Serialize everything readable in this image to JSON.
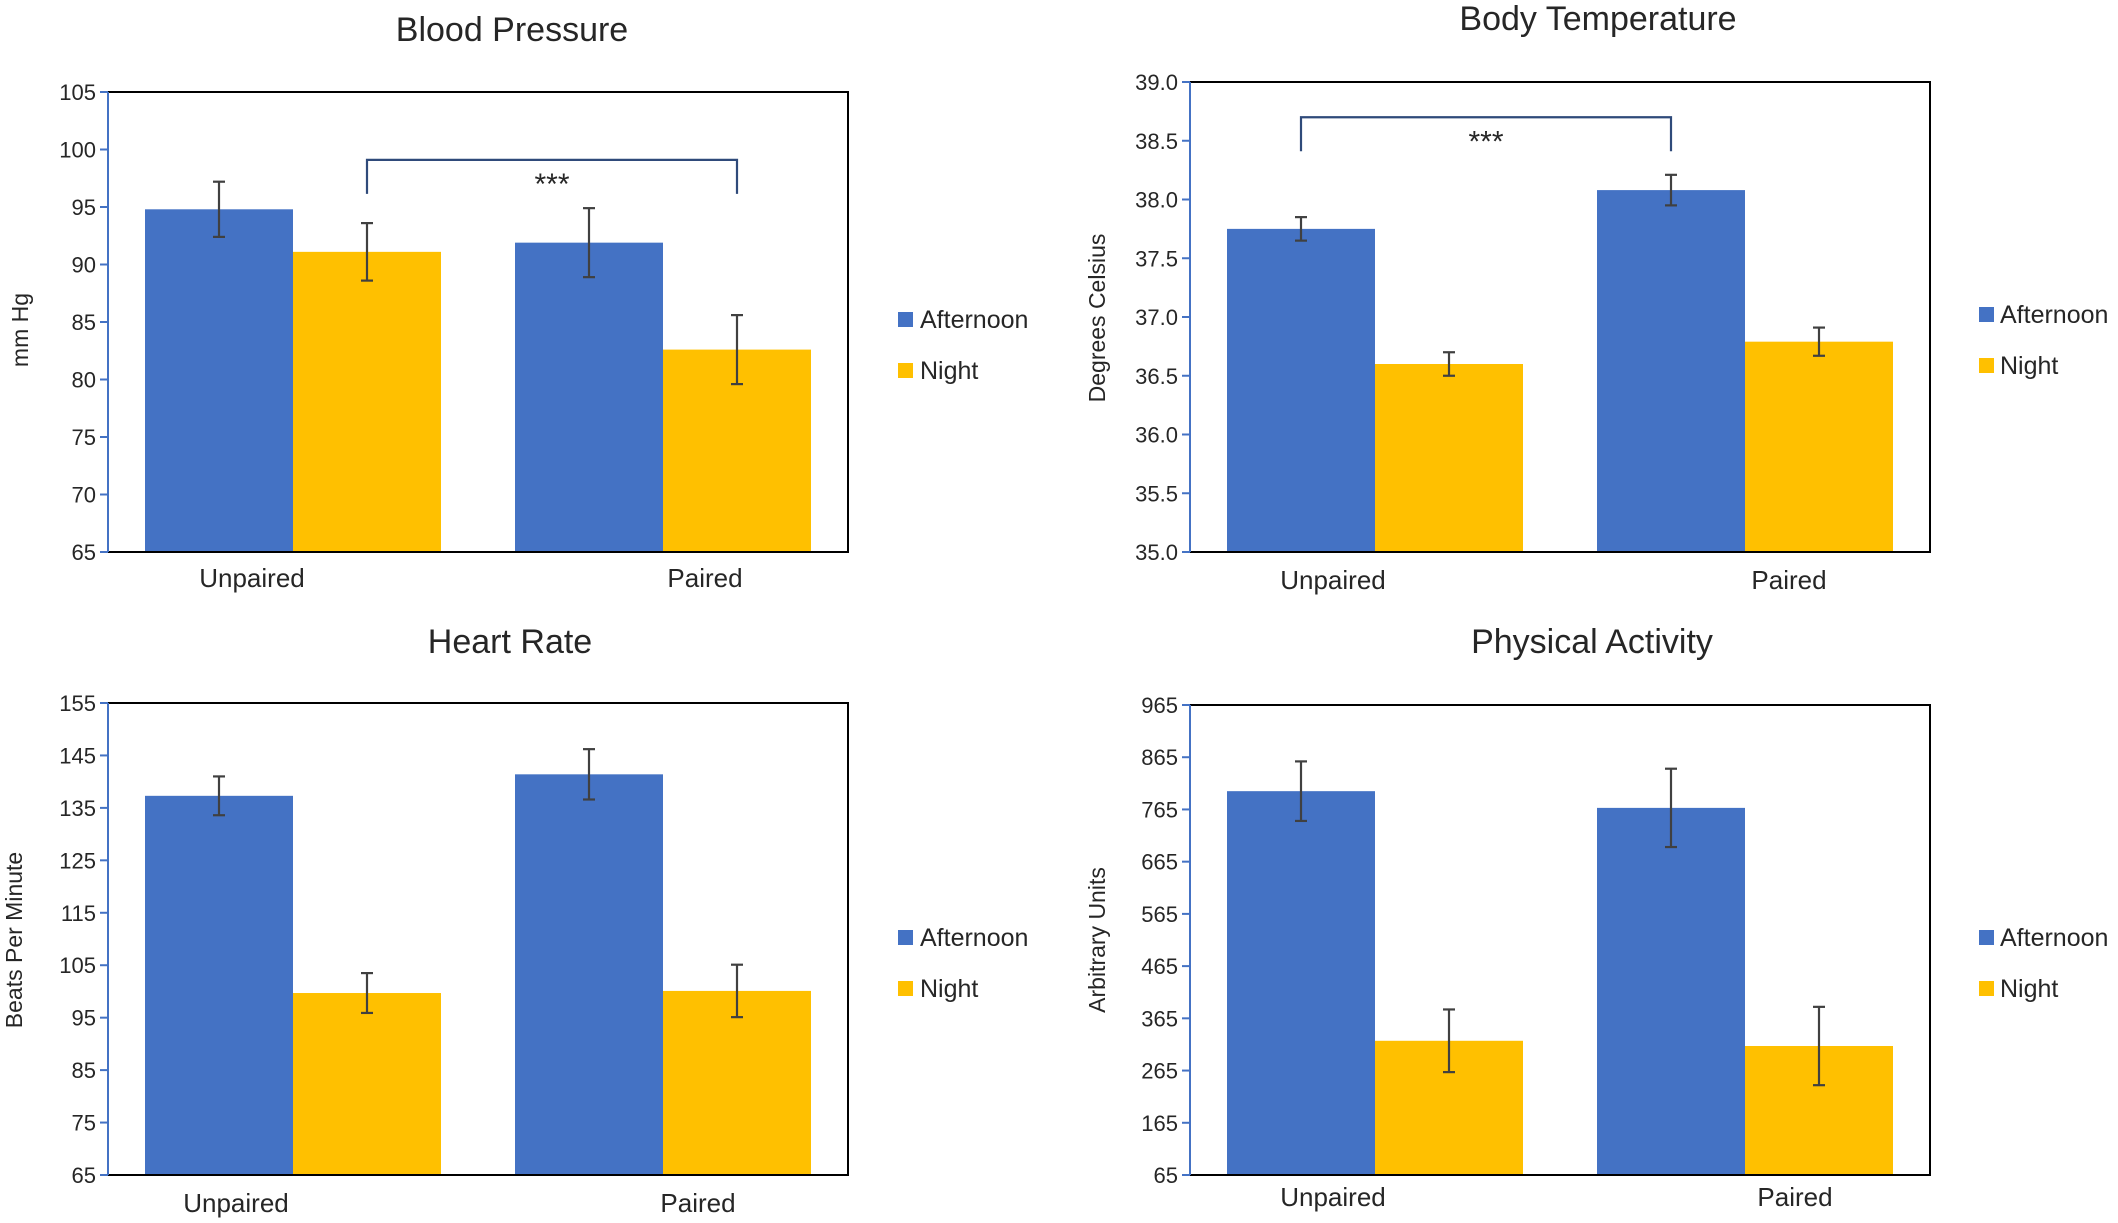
{
  "colors": {
    "afternoon": "#4472C4",
    "night": "#FFC000",
    "axis": "#000000",
    "tick_line": "#4472C4",
    "errbar": "#404040"
  },
  "chart_data": [
    {
      "type": "bar",
      "title": "Blood Pressure",
      "ylabel": "mm Hg",
      "ylim": [
        65,
        105
      ],
      "yticks": [
        65,
        70,
        75,
        80,
        85,
        90,
        95,
        100,
        105
      ],
      "ytick_labels": [
        "65",
        "70",
        "75",
        "80",
        "85",
        "90",
        "95",
        "100",
        "105"
      ],
      "categories": [
        "Unpaired",
        "Paired"
      ],
      "series": [
        {
          "name": "Afternoon",
          "values": [
            94.8,
            91.9
          ],
          "errors": [
            2.4,
            3.0
          ]
        },
        {
          "name": "Night",
          "values": [
            91.1,
            82.6
          ],
          "errors": [
            2.5,
            3.0
          ]
        }
      ],
      "annotations": [
        {
          "text": "***",
          "from": [
            "Unpaired",
            "Night"
          ],
          "to": [
            "Paired",
            "Night"
          ],
          "y": 99.1
        }
      ],
      "legend": "right",
      "grid": false
    },
    {
      "type": "bar",
      "title": "Body Temperature",
      "ylabel": "Degrees Celsius",
      "ylim": [
        35.0,
        39.0
      ],
      "yticks": [
        35.0,
        35.5,
        36.0,
        36.5,
        37.0,
        37.5,
        38.0,
        38.5,
        39.0
      ],
      "ytick_labels": [
        "35.0",
        "35.5",
        "36.0",
        "36.5",
        "37.0",
        "37.5",
        "38.0",
        "38.5",
        "39.0"
      ],
      "categories": [
        "Unpaired",
        "Paired"
      ],
      "series": [
        {
          "name": "Afternoon",
          "values": [
            37.75,
            38.08
          ],
          "errors": [
            0.1,
            0.13
          ]
        },
        {
          "name": "Night",
          "values": [
            36.6,
            36.79
          ],
          "errors": [
            0.1,
            0.12
          ]
        }
      ],
      "annotations": [
        {
          "text": "***",
          "from": [
            "Unpaired",
            "Afternoon"
          ],
          "to": [
            "Paired",
            "Afternoon"
          ],
          "y": 38.7
        }
      ],
      "legend": "right",
      "grid": false
    },
    {
      "type": "bar",
      "title": "Heart Rate",
      "ylabel": "Beats Per Minute",
      "ylim": [
        65,
        155
      ],
      "yticks": [
        65,
        75,
        85,
        95,
        105,
        115,
        125,
        135,
        145,
        155
      ],
      "ytick_labels": [
        "65",
        "75",
        "85",
        "95",
        "105",
        "115",
        "125",
        "135",
        "145",
        "155"
      ],
      "categories": [
        "Unpaired",
        "Paired"
      ],
      "series": [
        {
          "name": "Afternoon",
          "values": [
            137.3,
            141.4
          ],
          "errors": [
            3.7,
            4.8
          ]
        },
        {
          "name": "Night",
          "values": [
            99.7,
            100.1
          ],
          "errors": [
            3.8,
            5.0
          ]
        }
      ],
      "annotations": [],
      "legend": "right",
      "grid": false
    },
    {
      "type": "bar",
      "title": "Physical Activity",
      "ylabel": "Arbitrary Units",
      "ylim": [
        65,
        965
      ],
      "yticks": [
        65,
        165,
        265,
        365,
        465,
        565,
        665,
        765,
        865,
        965
      ],
      "ytick_labels": [
        "65",
        "165",
        "265",
        "365",
        "465",
        "565",
        "665",
        "765",
        "865",
        "965"
      ],
      "categories": [
        "Unpaired",
        "Paired"
      ],
      "series": [
        {
          "name": "Afternoon",
          "values": [
            800,
            768
          ],
          "errors": [
            57,
            75
          ]
        },
        {
          "name": "Night",
          "values": [
            322,
            312
          ],
          "errors": [
            60,
            75
          ]
        }
      ],
      "annotations": [],
      "legend": "right",
      "grid": false
    }
  ]
}
